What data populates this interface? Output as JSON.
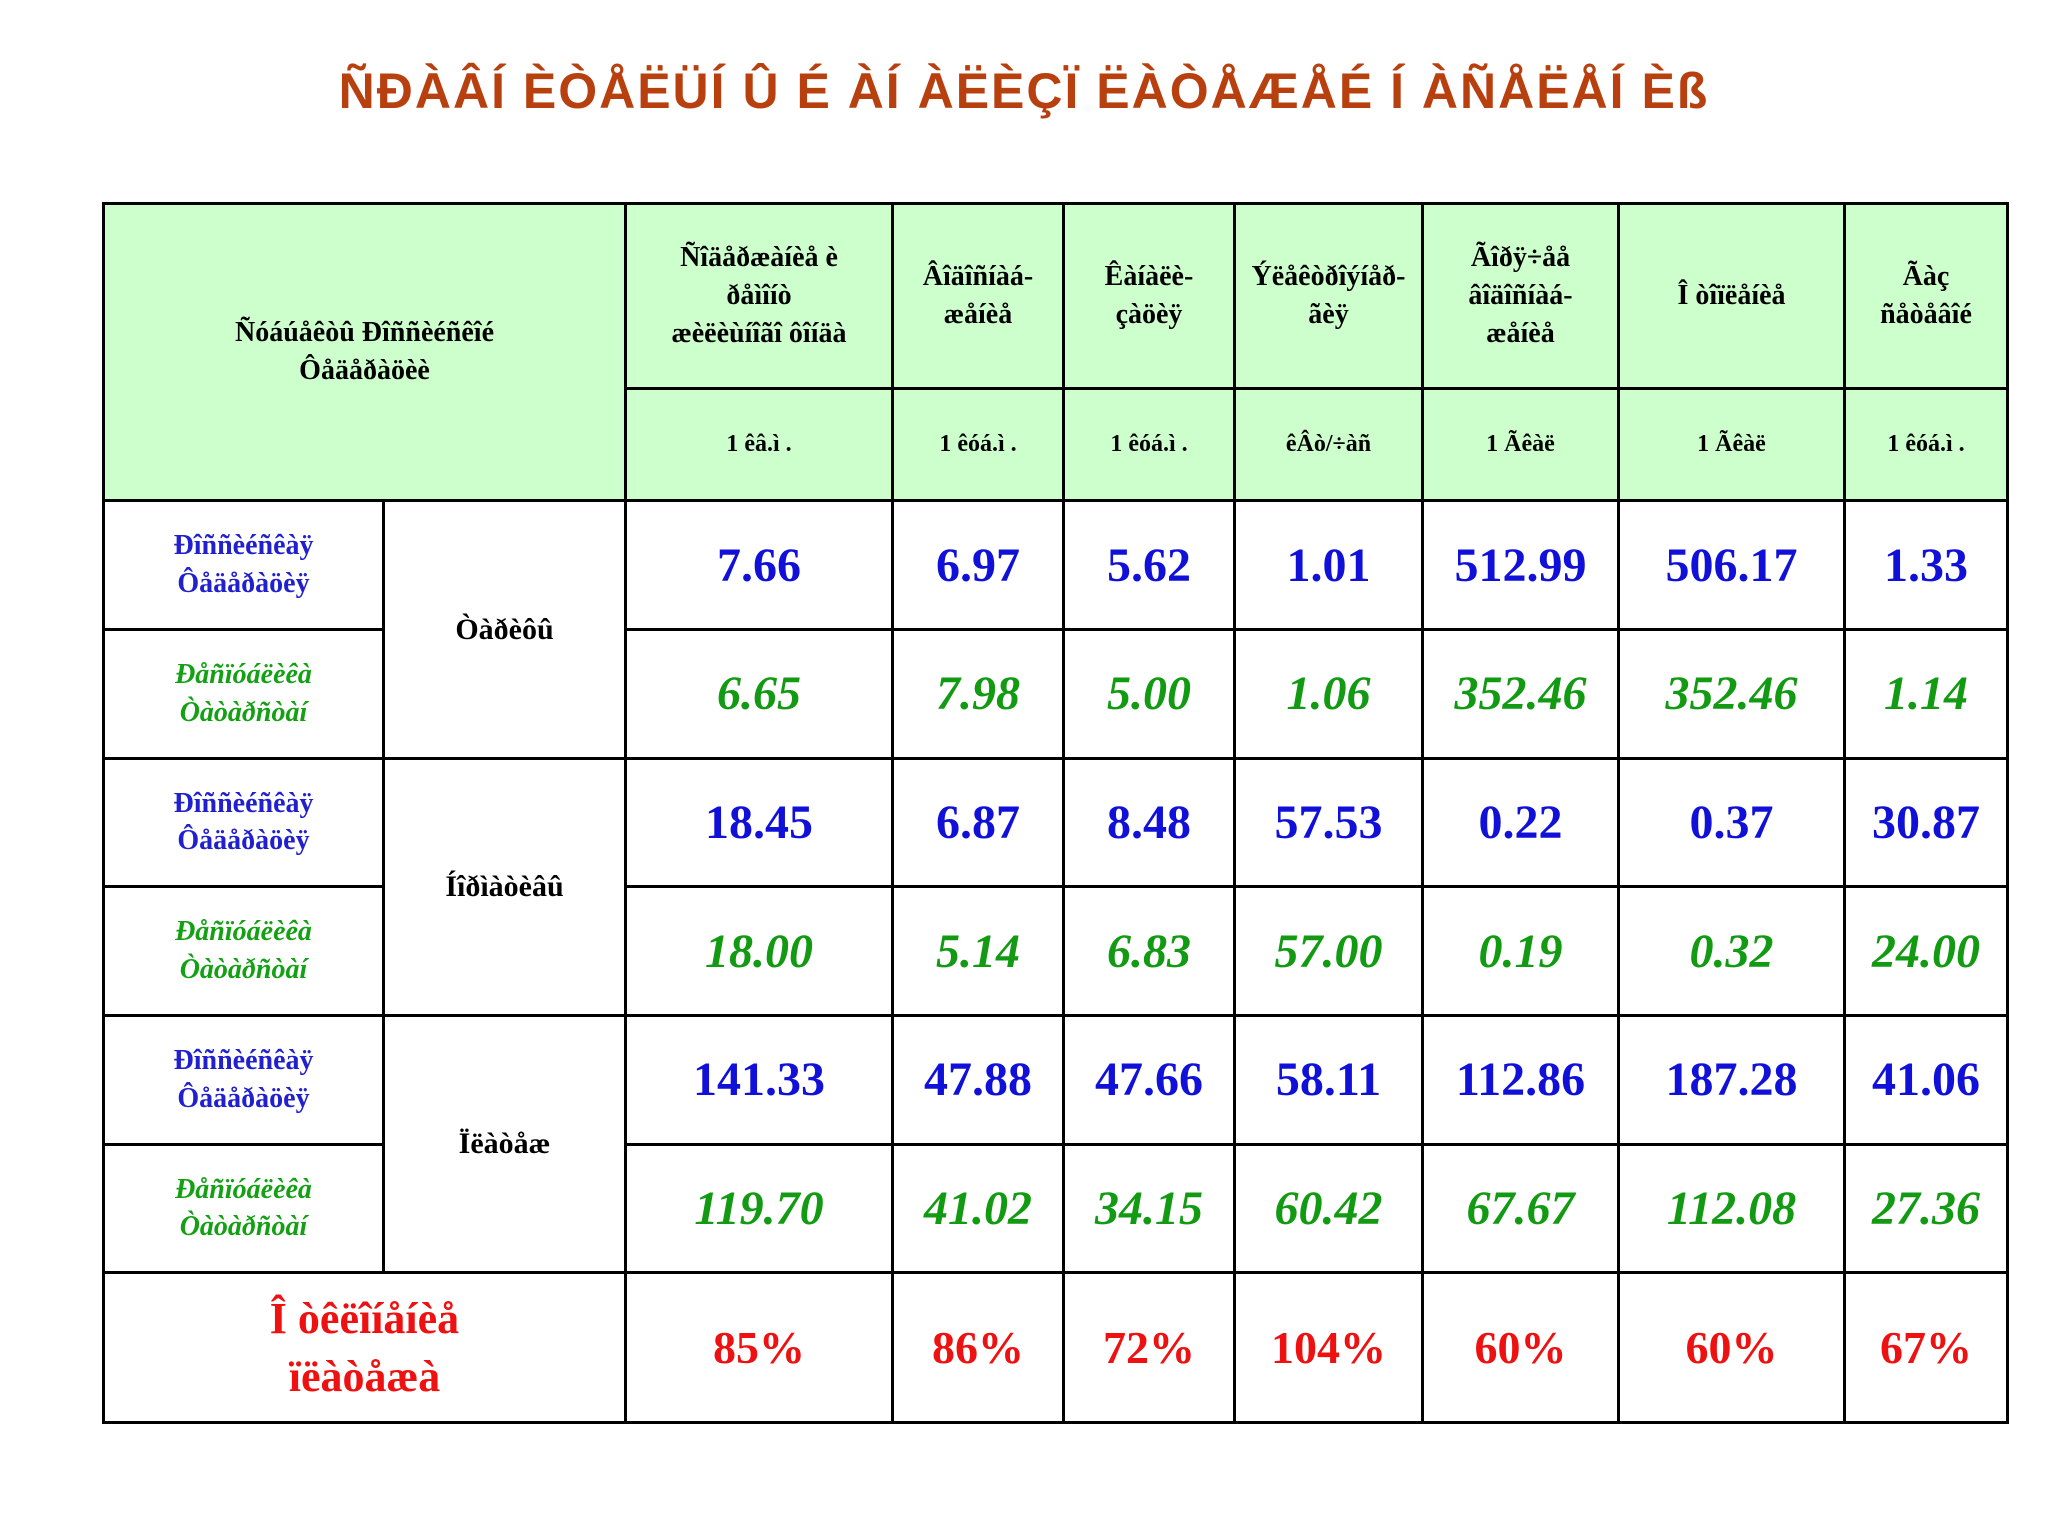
{
  "title": "ÑÐÀÂÍ ÈÒÅËÜÍ Û É ÀÍ ÀËÈÇÏ ËÀÒÅÆÅÉ Í ÀÑÅËÅÍ Èß",
  "header": {
    "first_col": [
      "Ñóáúåêòû Ðîññèéñêîé",
      "Ôåäåðàöèè"
    ],
    "columns": [
      {
        "lines": [
          "Ñîäåðæàíèå è",
          "ðåìîíò",
          "æèëèùíîãî ôîíäà"
        ],
        "unit": "1 êâ.ì ."
      },
      {
        "lines": [
          "Âîäîñíàá-",
          "æåíèå"
        ],
        "unit": "1 êóá.ì ."
      },
      {
        "lines": [
          "Êàíàëè-",
          "çàöèÿ"
        ],
        "unit": "1 êóá.ì ."
      },
      {
        "lines": [
          "Ýëåêòðîýíåð-",
          "ãèÿ"
        ],
        "unit": "êÂò/÷àñ"
      },
      {
        "lines": [
          "Ãîðÿ÷åå",
          "âîäîñíàá-",
          "æåíèå"
        ],
        "unit": "1 Ãêàë"
      },
      {
        "lines": [
          "Î òîïëåíèå"
        ],
        "unit": "1 Ãêàë"
      },
      {
        "lines": [
          "Ãàç",
          "ñåòåâîé"
        ],
        "unit": "1 êóá.ì ."
      }
    ]
  },
  "row_labels": {
    "russia": [
      "Ðîññèéñêàÿ",
      "Ôåäåðàöèÿ"
    ],
    "tatarstan": [
      "Ðåñïóáëèêà",
      "Òàòàðñòàí"
    ]
  },
  "groups": [
    {
      "name": "Òàðèôû",
      "russia": [
        "7.66",
        "6.97",
        "5.62",
        "1.01",
        "512.99",
        "506.17",
        "1.33"
      ],
      "tatarstan": [
        "6.65",
        "7.98",
        "5.00",
        "1.06",
        "352.46",
        "352.46",
        "1.14"
      ]
    },
    {
      "name": "Íîðìàòèâû",
      "russia": [
        "18.45",
        "6.87",
        "8.48",
        "57.53",
        "0.22",
        "0.37",
        "30.87"
      ],
      "tatarstan": [
        "18.00",
        "5.14",
        "6.83",
        "57.00",
        "0.19",
        "0.32",
        "24.00"
      ]
    },
    {
      "name": "Ïëàòåæ",
      "russia": [
        "141.33",
        "47.88",
        "47.66",
        "58.11",
        "112.86",
        "187.28",
        "41.06"
      ],
      "tatarstan": [
        "119.70",
        "41.02",
        "34.15",
        "60.42",
        "67.67",
        "112.08",
        "27.36"
      ]
    }
  ],
  "ratio": {
    "label": [
      "Î òêëîíåíèå",
      "ïëàòåæà"
    ],
    "values": [
      "85%",
      "86%",
      "72%",
      "104%",
      "60%",
      "60%",
      "67%"
    ]
  },
  "colors": {
    "title": "#b8400f",
    "header_bg": "#ccffcc",
    "russia": "#1010d8",
    "tatarstan": "#139a13",
    "ratio": "#ee1111"
  }
}
